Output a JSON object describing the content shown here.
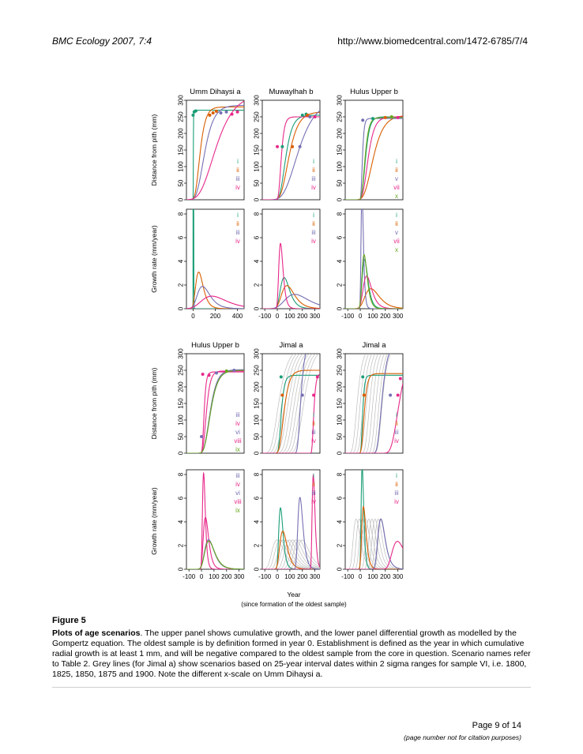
{
  "header": {
    "journal": "BMC Ecology 2007, 7:4",
    "url": "http://www.biomedcentral.com/1472-6785/7/4"
  },
  "colors": {
    "i": "#1b9e77",
    "ii": "#d95f02",
    "iii": "#7570b3",
    "iv": "#e7298a",
    "v": "#7570b3",
    "vi": "#7570b3",
    "vii": "#e7298a",
    "viii": "#e7298a",
    "ix": "#66a61e",
    "x": "#66a61e",
    "grey": "#bdbdbd"
  },
  "figure": {
    "x_label": "Year",
    "x_sublabel": "(since formation of the oldest sample)",
    "y_label_top": "Distance from pith (mm)",
    "y_label_bottom": "Growth rate (mm/year)"
  },
  "chart_data": [
    {
      "type": "line",
      "title": "Umm Dihaysi a",
      "panel": "cumulative",
      "xlim": [
        -60,
        460
      ],
      "ylim": [
        0,
        300
      ],
      "yticks": [
        0,
        50,
        100,
        150,
        200,
        250,
        300
      ],
      "legend": [
        "i",
        "ii",
        "iii",
        "iv"
      ],
      "series": [
        {
          "name": "i",
          "t0": 0,
          "rate": 0.8,
          "A": 270
        },
        {
          "name": "ii",
          "t0": 0,
          "rate": 0.03,
          "A": 280
        },
        {
          "name": "iii",
          "t0": 0,
          "rate": 0.018,
          "A": 285
        },
        {
          "name": "iv",
          "t0": 0,
          "rate": 0.009,
          "A": 320
        }
      ],
      "points": [
        {
          "series": "i",
          "x": 0,
          "y": 255
        },
        {
          "series": "i",
          "x": 10,
          "y": 265
        },
        {
          "series": "i",
          "x": 25,
          "y": 268
        },
        {
          "series": "ii",
          "x": 150,
          "y": 255
        },
        {
          "series": "ii",
          "x": 180,
          "y": 262
        },
        {
          "series": "ii",
          "x": 210,
          "y": 267
        },
        {
          "series": "iii",
          "x": 250,
          "y": 262
        },
        {
          "series": "iii",
          "x": 300,
          "y": 265
        },
        {
          "series": "iv",
          "x": 350,
          "y": 258
        },
        {
          "series": "iv",
          "x": 400,
          "y": 265
        }
      ]
    },
    {
      "type": "line",
      "title": "Muwaylhah b",
      "panel": "cumulative",
      "xlim": [
        -120,
        340
      ],
      "ylim": [
        0,
        300
      ],
      "yticks": [
        0,
        50,
        100,
        150,
        200,
        250,
        300
      ],
      "legend": [
        "i",
        "ii",
        "iii",
        "iv"
      ],
      "series": [
        {
          "name": "i",
          "t0": 0,
          "rate": 0.028,
          "A": 255
        },
        {
          "name": "ii",
          "t0": 0,
          "rate": 0.02,
          "A": 265
        },
        {
          "name": "iii",
          "t0": 0,
          "rate": 0.011,
          "A": 300
        },
        {
          "name": "iv",
          "t0": 0,
          "rate": 0.06,
          "A": 250
        }
      ],
      "points": [
        {
          "series": "i",
          "x": 200,
          "y": 255
        },
        {
          "series": "i",
          "x": 230,
          "y": 258
        },
        {
          "series": "ii",
          "x": 120,
          "y": 160
        },
        {
          "series": "ii",
          "x": 240,
          "y": 255
        },
        {
          "series": "iii",
          "x": 180,
          "y": 160
        },
        {
          "series": "iii",
          "x": 260,
          "y": 250
        },
        {
          "series": "iv",
          "x": 0,
          "y": 160
        },
        {
          "series": "iv",
          "x": 300,
          "y": 250
        },
        {
          "series": "i",
          "x": 40,
          "y": 160
        }
      ]
    },
    {
      "type": "line",
      "title": "Hulus Upper b",
      "panel": "cumulative",
      "xlim": [
        -120,
        340
      ],
      "ylim": [
        0,
        300
      ],
      "yticks": [
        0,
        50,
        100,
        150,
        200,
        250,
        300
      ],
      "legend": [
        "i",
        "ii",
        "v",
        "vii",
        "x"
      ],
      "series": [
        {
          "name": "i",
          "t0": 0,
          "rate": 0.045,
          "A": 250
        },
        {
          "name": "ii",
          "t0": 0,
          "rate": 0.018,
          "A": 255
        },
        {
          "name": "v",
          "t0": 0,
          "rate": 0.11,
          "A": 245
        },
        {
          "name": "vii",
          "t0": 0,
          "rate": 0.03,
          "A": 250
        },
        {
          "name": "x",
          "t0": 0,
          "rate": 0.05,
          "A": 248
        }
      ],
      "points": [
        {
          "series": "v",
          "x": 20,
          "y": 240
        },
        {
          "series": "i",
          "x": 100,
          "y": 245
        },
        {
          "series": "ii",
          "x": 200,
          "y": 248
        },
        {
          "series": "x",
          "x": 250,
          "y": 250
        },
        {
          "series": "vii",
          "x": 300,
          "y": 248
        }
      ]
    },
    {
      "type": "line",
      "title": "",
      "panel": "rate",
      "xlim": [
        -60,
        460
      ],
      "ylim": [
        0,
        8.4
      ],
      "xticks": [
        0,
        200,
        400
      ],
      "yticks": [
        0,
        2,
        4,
        6,
        8
      ],
      "legend": [
        "i",
        "ii",
        "iii",
        "iv"
      ],
      "series_ref": 0
    },
    {
      "type": "line",
      "title": "",
      "panel": "rate",
      "xlim": [
        -120,
        340
      ],
      "ylim": [
        0,
        8.4
      ],
      "xticks": [
        -100,
        0,
        100,
        200,
        300
      ],
      "yticks": [
        0,
        2,
        4,
        6,
        8
      ],
      "legend": [
        "i",
        "ii",
        "iii",
        "iv"
      ],
      "series_ref": 1
    },
    {
      "type": "line",
      "title": "",
      "panel": "rate",
      "xlim": [
        -120,
        340
      ],
      "ylim": [
        0,
        8.4
      ],
      "xticks": [
        -100,
        0,
        100,
        200,
        300
      ],
      "yticks": [
        0,
        2,
        4,
        6,
        8
      ],
      "legend": [
        "i",
        "ii",
        "v",
        "vii",
        "x"
      ],
      "series_ref": 2
    },
    {
      "type": "line",
      "title": "Hulus Upper b",
      "panel": "cumulative",
      "xlim": [
        -120,
        340
      ],
      "ylim": [
        0,
        300
      ],
      "yticks": [
        0,
        50,
        100,
        150,
        200,
        250,
        300
      ],
      "legend": [
        "iii",
        "iv",
        "vi",
        "viii",
        "ix"
      ],
      "series": [
        {
          "name": "iii",
          "t0": 0,
          "rate": 0.026,
          "A": 250
        },
        {
          "name": "iv",
          "t0": 0,
          "rate": 0.048,
          "A": 248
        },
        {
          "name": "vi",
          "t0": 0,
          "rate": 0.027,
          "A": 252
        },
        {
          "name": "viii",
          "t0": 0,
          "rate": 0.09,
          "A": 245
        },
        {
          "name": "ix",
          "t0": 0,
          "rate": 0.026,
          "A": 250
        }
      ],
      "points": [
        {
          "series": "viii",
          "x": 10,
          "y": 238
        },
        {
          "series": "iv",
          "x": 60,
          "y": 235
        },
        {
          "series": "iii",
          "x": 120,
          "y": 242
        },
        {
          "series": "ix",
          "x": 200,
          "y": 248
        },
        {
          "series": "vi",
          "x": 260,
          "y": 250
        },
        {
          "series": "iii",
          "x": 0,
          "y": 50
        }
      ]
    },
    {
      "type": "line",
      "title": "Jimal a",
      "panel": "cumulative",
      "xlim": [
        -120,
        340
      ],
      "ylim": [
        0,
        300
      ],
      "yticks": [
        0,
        50,
        100,
        150,
        200,
        250,
        300
      ],
      "legend": [
        "i",
        "ii",
        "iii",
        "iv"
      ],
      "grey_t0": [
        -75,
        -50,
        -25,
        0,
        25,
        50,
        75,
        100,
        125
      ],
      "series": [
        {
          "name": "i",
          "t0": 0,
          "rate": 0.06,
          "A": 235
        },
        {
          "name": "ii",
          "t0": 0,
          "rate": 0.035,
          "A": 250
        },
        {
          "name": "iii",
          "t0": 150,
          "rate": 0.05,
          "A": 330
        },
        {
          "name": "iv",
          "t0": 270,
          "rate": 0.09,
          "A": 240
        }
      ],
      "points": [
        {
          "series": "i",
          "x": 30,
          "y": 230
        },
        {
          "series": "ii",
          "x": 40,
          "y": 175
        },
        {
          "series": "iii",
          "x": 200,
          "y": 175
        },
        {
          "series": "iv",
          "x": 290,
          "y": 175
        },
        {
          "series": "iv",
          "x": 320,
          "y": 230
        }
      ]
    },
    {
      "type": "line",
      "title": "Jimal a",
      "panel": "cumulative",
      "xlim": [
        -120,
        340
      ],
      "ylim": [
        0,
        300
      ],
      "yticks": [
        0,
        50,
        100,
        150,
        200,
        250,
        300
      ],
      "legend": [
        "i",
        "ii",
        "iii",
        "iv"
      ],
      "grey_t0": [
        -75,
        -50,
        -25,
        0,
        25,
        50,
        75,
        100,
        125
      ],
      "series": [
        {
          "name": "i",
          "t0": 0,
          "rate": 0.1,
          "A": 235
        },
        {
          "name": "ii",
          "t0": 0,
          "rate": 0.06,
          "A": 240
        },
        {
          "name": "iii",
          "t0": 120,
          "rate": 0.035,
          "A": 330
        },
        {
          "name": "iv",
          "t0": 220,
          "rate": 0.02,
          "A": 320
        }
      ],
      "points": [
        {
          "series": "i",
          "x": 20,
          "y": 230
        },
        {
          "series": "ii",
          "x": 30,
          "y": 175
        },
        {
          "series": "iii",
          "x": 240,
          "y": 175
        },
        {
          "series": "iv",
          "x": 300,
          "y": 175
        },
        {
          "series": "iv",
          "x": 320,
          "y": 225
        }
      ]
    },
    {
      "type": "line",
      "title": "",
      "panel": "rate",
      "xlim": [
        -120,
        340
      ],
      "ylim": [
        0,
        8.4
      ],
      "xticks": [
        -100,
        0,
        100,
        200,
        300
      ],
      "yticks": [
        0,
        2,
        4,
        6,
        8
      ],
      "legend": [
        "iii",
        "iv",
        "vi",
        "viii",
        "ix"
      ],
      "series_ref": 6
    },
    {
      "type": "line",
      "title": "",
      "panel": "rate",
      "xlim": [
        -120,
        340
      ],
      "ylim": [
        0,
        8.4
      ],
      "xticks": [
        -100,
        0,
        100,
        200,
        300
      ],
      "yticks": [
        0,
        2,
        4,
        6,
        8
      ],
      "legend": [
        "i",
        "ii",
        "iii",
        "iv"
      ],
      "series_ref": 7
    },
    {
      "type": "line",
      "title": "",
      "panel": "rate",
      "xlim": [
        -120,
        340
      ],
      "ylim": [
        0,
        8.4
      ],
      "xticks": [
        -100,
        0,
        100,
        200,
        300
      ],
      "yticks": [
        0,
        2,
        4,
        6,
        8
      ],
      "legend": [
        "i",
        "ii",
        "iii",
        "iv"
      ],
      "series_ref": 8
    }
  ],
  "caption": {
    "figure_number": "Figure 5",
    "title": "Plots of age scenarios",
    "text": ". The upper panel shows cumulative growth, and the lower panel differential growth as modelled by the Gompertz equation. The oldest sample is by definition formed in year 0. Establishment is defined as the year in which cumulative radial growth is at least 1 mm, and will be negative compared to the oldest sample from the core in question. Scenario names refer to Table 2. Grey lines (for Jimal a) show scenarios based on 25-year interval dates within 2 sigma ranges for sample VI, i.e. 1800, 1825, 1850, 1875 and 1900. Note the different x-scale on Umm Dihaysi a."
  },
  "footer": {
    "page": "Page 9 of 14",
    "note": "(page number not for citation purposes)"
  }
}
